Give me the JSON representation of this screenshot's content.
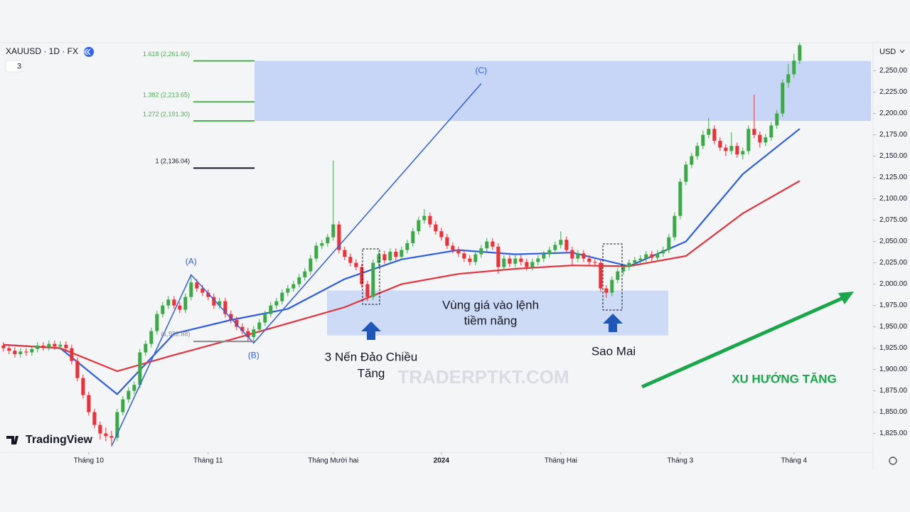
{
  "chart_data": {
    "type": "candlestick",
    "symbol": "XAUUSD · 1D · FX",
    "interval_badge": "3",
    "currency": "USD",
    "brand": "TradingView",
    "watermark": "TRADERPTKT.COM",
    "ylim": [
      1803,
      2283
    ],
    "xlim": [
      -0.6,
      152.9
    ],
    "yticks": [
      {
        "value": 1825,
        "label": "1,825.00"
      },
      {
        "value": 1850,
        "label": "1,850.00"
      },
      {
        "value": 1875,
        "label": "1,875.00"
      },
      {
        "value": 1900,
        "label": "1,900.00"
      },
      {
        "value": 1925,
        "label": "1,925.00"
      },
      {
        "value": 1950,
        "label": "1,950.00"
      },
      {
        "value": 1975,
        "label": "1,975.00"
      },
      {
        "value": 2000,
        "label": "2,000.00"
      },
      {
        "value": 2025,
        "label": "2,025.00"
      },
      {
        "value": 2050,
        "label": "2,050.00"
      },
      {
        "value": 2075,
        "label": "2,075.00"
      },
      {
        "value": 2100,
        "label": "2,100.00"
      },
      {
        "value": 2125,
        "label": "2,125.00"
      },
      {
        "value": 2150,
        "label": "2,150.00"
      },
      {
        "value": 2175,
        "label": "2,175.00"
      },
      {
        "value": 2200,
        "label": "2,200.00"
      },
      {
        "value": 2225,
        "label": "2,225.00"
      },
      {
        "value": 2250,
        "label": "2,250.00"
      }
    ],
    "xticks": [
      {
        "value": 15,
        "label": "Tháng 10"
      },
      {
        "value": 36,
        "label": "Tháng 11"
      },
      {
        "value": 58,
        "label": "Tháng Mười hai"
      },
      {
        "value": 77,
        "label": "2024"
      },
      {
        "value": 98,
        "label": "Tháng Hai"
      },
      {
        "value": 119,
        "label": "Tháng 3"
      },
      {
        "value": 139,
        "label": "Tháng 4"
      }
    ],
    "up_color": "#3fa64a",
    "down_color": "#e8333b",
    "ohlc": [
      [
        1928,
        1932,
        1921,
        1925
      ],
      [
        1925,
        1929,
        1918,
        1922
      ],
      [
        1922,
        1926,
        1914,
        1918
      ],
      [
        1918,
        1925,
        1914,
        1921
      ],
      [
        1921,
        1925,
        1916,
        1920
      ],
      [
        1920,
        1928,
        1916,
        1924
      ],
      [
        1924,
        1932,
        1920,
        1928
      ],
      [
        1928,
        1932,
        1922,
        1926
      ],
      [
        1926,
        1934,
        1922,
        1930
      ],
      [
        1930,
        1934,
        1923,
        1927
      ],
      [
        1927,
        1933,
        1923,
        1929
      ],
      [
        1929,
        1933,
        1921,
        1925
      ],
      [
        1925,
        1929,
        1906,
        1910
      ],
      [
        1910,
        1914,
        1886,
        1890
      ],
      [
        1890,
        1894,
        1866,
        1870
      ],
      [
        1870,
        1874,
        1846,
        1850
      ],
      [
        1850,
        1854,
        1831,
        1835
      ],
      [
        1835,
        1839,
        1818,
        1825
      ],
      [
        1825,
        1832,
        1816,
        1822
      ],
      [
        1822,
        1828,
        1812,
        1820
      ],
      [
        1820,
        1854,
        1816,
        1850
      ],
      [
        1850,
        1869,
        1846,
        1865
      ],
      [
        1865,
        1879,
        1861,
        1875
      ],
      [
        1875,
        1886,
        1871,
        1882
      ],
      [
        1882,
        1924,
        1878,
        1920
      ],
      [
        1920,
        1934,
        1916,
        1930
      ],
      [
        1930,
        1949,
        1926,
        1945
      ],
      [
        1945,
        1969,
        1941,
        1965
      ],
      [
        1965,
        1979,
        1961,
        1975
      ],
      [
        1975,
        1986,
        1971,
        1982
      ],
      [
        1982,
        1986,
        1971,
        1975
      ],
      [
        1975,
        1979,
        1966,
        1970
      ],
      [
        1970,
        1989,
        1966,
        1985
      ],
      [
        1985,
        2010,
        1981,
        2002
      ],
      [
        2002,
        2006,
        1991,
        1995
      ],
      [
        1995,
        1999,
        1986,
        1990
      ],
      [
        1990,
        1994,
        1981,
        1985
      ],
      [
        1985,
        1989,
        1971,
        1975
      ],
      [
        1975,
        1984,
        1971,
        1980
      ],
      [
        1980,
        1984,
        1961,
        1965
      ],
      [
        1965,
        1969,
        1954,
        1958
      ],
      [
        1958,
        1962,
        1946,
        1950
      ],
      [
        1950,
        1954,
        1941,
        1945
      ],
      [
        1945,
        1949,
        1932,
        1938
      ],
      [
        1938,
        1951,
        1934,
        1947
      ],
      [
        1947,
        1959,
        1943,
        1955
      ],
      [
        1955,
        1969,
        1951,
        1965
      ],
      [
        1965,
        1979,
        1961,
        1975
      ],
      [
        1975,
        1984,
        1971,
        1980
      ],
      [
        1980,
        1994,
        1976,
        1990
      ],
      [
        1990,
        1999,
        1986,
        1995
      ],
      [
        1995,
        2004,
        1991,
        2000
      ],
      [
        2000,
        2012,
        1996,
        2008
      ],
      [
        2008,
        2019,
        2004,
        2015
      ],
      [
        2015,
        2034,
        2011,
        2030
      ],
      [
        2030,
        2049,
        2026,
        2045
      ],
      [
        2045,
        2052,
        2041,
        2048
      ],
      [
        2048,
        2059,
        2044,
        2055
      ],
      [
        2055,
        2145,
        2051,
        2070
      ],
      [
        2070,
        2074,
        2036,
        2040
      ],
      [
        2040,
        2044,
        2028,
        2032
      ],
      [
        2032,
        2036,
        2021,
        2025
      ],
      [
        2025,
        2029,
        2016,
        2020
      ],
      [
        2020,
        2024,
        1996,
        2000
      ],
      [
        2000,
        2004,
        1980,
        1985
      ],
      [
        1985,
        2029,
        1981,
        2025
      ],
      [
        2025,
        2039,
        2021,
        2035
      ],
      [
        2035,
        2039,
        2024,
        2028
      ],
      [
        2028,
        2042,
        2024,
        2038
      ],
      [
        2038,
        2042,
        2028,
        2032
      ],
      [
        2032,
        2044,
        2028,
        2040
      ],
      [
        2040,
        2052,
        2036,
        2048
      ],
      [
        2048,
        2066,
        2044,
        2062
      ],
      [
        2062,
        2079,
        2058,
        2075
      ],
      [
        2075,
        2088,
        2071,
        2080
      ],
      [
        2080,
        2084,
        2066,
        2070
      ],
      [
        2070,
        2074,
        2058,
        2062
      ],
      [
        2062,
        2066,
        2051,
        2055
      ],
      [
        2055,
        2059,
        2041,
        2045
      ],
      [
        2045,
        2049,
        2036,
        2040
      ],
      [
        2040,
        2044,
        2032,
        2036
      ],
      [
        2036,
        2040,
        2026,
        2030
      ],
      [
        2030,
        2034,
        2022,
        2026
      ],
      [
        2026,
        2039,
        2022,
        2035
      ],
      [
        2035,
        2046,
        2031,
        2042
      ],
      [
        2042,
        2054,
        2038,
        2050
      ],
      [
        2050,
        2054,
        2040,
        2044
      ],
      [
        2044,
        2048,
        2012,
        2020
      ],
      [
        2020,
        2034,
        2016,
        2030
      ],
      [
        2030,
        2034,
        2020,
        2024
      ],
      [
        2024,
        2034,
        2020,
        2030
      ],
      [
        2030,
        2034,
        2022,
        2026
      ],
      [
        2026,
        2030,
        2016,
        2020
      ],
      [
        2020,
        2030,
        2016,
        2026
      ],
      [
        2026,
        2034,
        2022,
        2030
      ],
      [
        2030,
        2039,
        2026,
        2035
      ],
      [
        2035,
        2044,
        2031,
        2040
      ],
      [
        2040,
        2050,
        2036,
        2046
      ],
      [
        2046,
        2062,
        2042,
        2052
      ],
      [
        2052,
        2056,
        2036,
        2040
      ],
      [
        2040,
        2044,
        2022,
        2030
      ],
      [
        2030,
        2040,
        2026,
        2036
      ],
      [
        2036,
        2040,
        2026,
        2030
      ],
      [
        2030,
        2034,
        2022,
        2026
      ],
      [
        2026,
        2030,
        2021,
        2025
      ],
      [
        2025,
        2029,
        1991,
        1995
      ],
      [
        1995,
        1999,
        1984,
        1990
      ],
      [
        1990,
        2009,
        1986,
        2005
      ],
      [
        2005,
        2019,
        2001,
        2015
      ],
      [
        2015,
        2024,
        2011,
        2020
      ],
      [
        2020,
        2029,
        2016,
        2025
      ],
      [
        2025,
        2032,
        2021,
        2028
      ],
      [
        2028,
        2034,
        2024,
        2030
      ],
      [
        2030,
        2039,
        2026,
        2035
      ],
      [
        2035,
        2039,
        2027,
        2031
      ],
      [
        2031,
        2040,
        2027,
        2036
      ],
      [
        2036,
        2044,
        2032,
        2040
      ],
      [
        2040,
        2059,
        2036,
        2055
      ],
      [
        2055,
        2084,
        2051,
        2080
      ],
      [
        2080,
        2124,
        2076,
        2120
      ],
      [
        2120,
        2144,
        2116,
        2140
      ],
      [
        2140,
        2154,
        2136,
        2150
      ],
      [
        2150,
        2166,
        2146,
        2162
      ],
      [
        2162,
        2180,
        2158,
        2175
      ],
      [
        2175,
        2195,
        2171,
        2182
      ],
      [
        2182,
        2186,
        2164,
        2168
      ],
      [
        2168,
        2172,
        2156,
        2160
      ],
      [
        2160,
        2164,
        2150,
        2156
      ],
      [
        2156,
        2178,
        2152,
        2162
      ],
      [
        2162,
        2166,
        2148,
        2152
      ],
      [
        2152,
        2160,
        2146,
        2156
      ],
      [
        2156,
        2186,
        2152,
        2182
      ],
      [
        2182,
        2222,
        2171,
        2175
      ],
      [
        2175,
        2179,
        2160,
        2166
      ],
      [
        2166,
        2176,
        2162,
        2172
      ],
      [
        2172,
        2190,
        2168,
        2186
      ],
      [
        2186,
        2204,
        2182,
        2200
      ],
      [
        2200,
        2240,
        2196,
        2236
      ],
      [
        2236,
        2258,
        2230,
        2246
      ],
      [
        2246,
        2270,
        2242,
        2262
      ],
      [
        2262,
        2283,
        2258,
        2280
      ]
    ],
    "series": [
      {
        "color": "#2f5fe0",
        "x": [
          0,
          10,
          20,
          30,
          40,
          50,
          60,
          70,
          80,
          90,
          100,
          110,
          120,
          130,
          140
        ],
        "values": [
          1929,
          1925,
          1871,
          1942,
          1958,
          1971,
          2006,
          2029,
          2040,
          2035,
          2037,
          2021,
          2050,
          2129,
          2182
        ]
      },
      {
        "color": "#e2343d",
        "x": [
          0,
          10,
          20,
          30,
          40,
          50,
          60,
          70,
          80,
          90,
          100,
          110,
          120,
          130,
          140
        ],
        "values": [
          1929,
          1925,
          1898,
          1917,
          1935,
          1954,
          1973,
          2000,
          2012,
          2018,
          2022,
          2021,
          2033,
          2083,
          2121
        ]
      }
    ],
    "fib_levels": [
      {
        "value": 2261.6,
        "label": "1.618 (2,261.60)"
      },
      {
        "value": 2213.65,
        "label": "1.382 (2,213.65)"
      },
      {
        "value": 2191.3,
        "label": "1.272 (2,191.30)"
      },
      {
        "value": 2136.04,
        "label": "1 (2,136.04)"
      }
    ],
    "wave": {
      "x": [
        19,
        33,
        44,
        84
      ],
      "values": [
        1810,
        2011,
        1931,
        2235
      ],
      "labels": [
        "(A)",
        "(B)",
        "(C)"
      ]
    },
    "b_level": {
      "value": 1932.88,
      "label": "(1,932.88)"
    },
    "entry_zone": {
      "values": [
        1992.5,
        1940
      ],
      "lines": [
        "Vùng giá vào lệnh",
        "tiềm năng"
      ]
    },
    "pattern_label": [
      "3 Nến Đảo Chiều",
      "Tăng"
    ],
    "morning_star_label": "Sao Mai",
    "trend_label": "XU HƯỚNG TĂNG"
  }
}
